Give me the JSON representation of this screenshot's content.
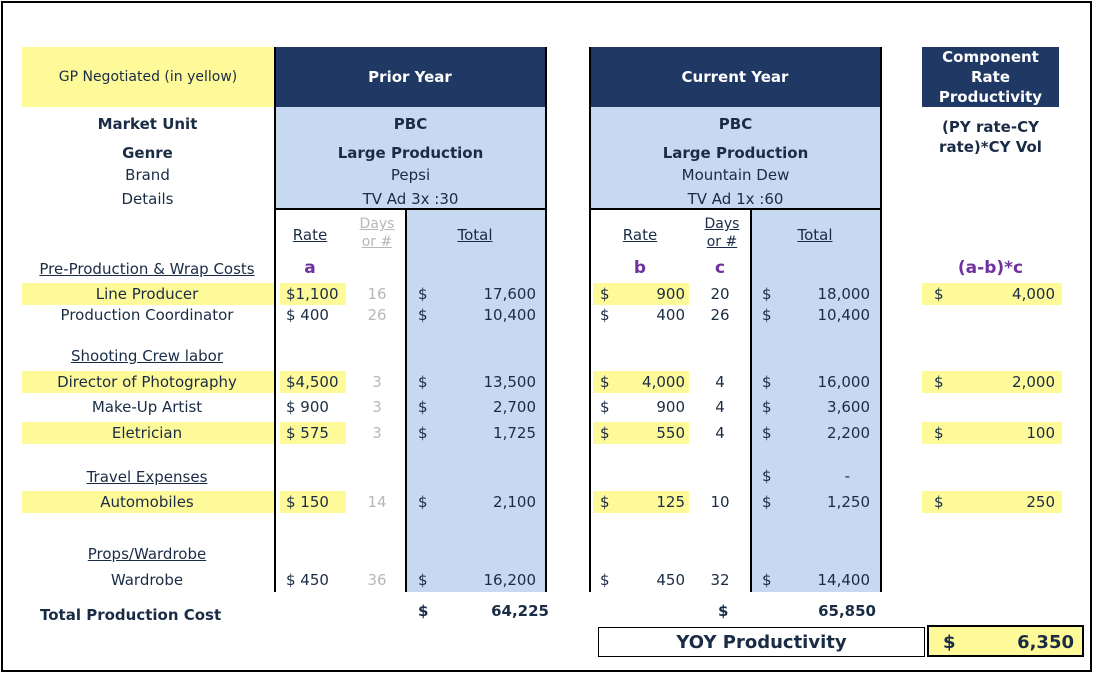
{
  "header": {
    "gp_label": "GP Negotiated (in yellow)",
    "prior_year": "Prior Year",
    "current_year": "Current Year",
    "component_line1": "Component",
    "component_line2": "Rate",
    "component_line3": "Productivity"
  },
  "meta_labels": {
    "market_unit": "Market Unit",
    "genre": "Genre",
    "brand": "Brand",
    "details": "Details"
  },
  "prior": {
    "market_unit": "PBC",
    "genre": "Large Production",
    "brand": "Pepsi",
    "details": "TV Ad 3x :30"
  },
  "current": {
    "market_unit": "PBC",
    "genre": "Large Production",
    "brand": "Mountain Dew",
    "details": "TV Ad 1x :60"
  },
  "formula": {
    "line1": "(PY rate-CY",
    "line2": "rate)*CY Vol"
  },
  "columns": {
    "rate": "Rate",
    "days1": "Days",
    "days2": "or #",
    "total": "Total"
  },
  "letters": {
    "a": "a",
    "b": "b",
    "c": "c",
    "formula": "(a-b)*c"
  },
  "sections": {
    "pre": "Pre-Production & Wrap Costs",
    "crew": "Shooting Crew labor",
    "travel": "Travel Expenses",
    "props": "Props/Wardrobe"
  },
  "rows": [
    {
      "label": "Line Producer",
      "py_rate": "$1,100",
      "py_days": "16",
      "py_total": "17,600",
      "cy_rate": "900",
      "cy_days": "20",
      "cy_total": "18,000",
      "prod": "4,000"
    },
    {
      "label": "Production Coordinator",
      "py_rate": "$  400",
      "py_days": "26",
      "py_total": "10,400",
      "cy_rate": "400",
      "cy_days": "26",
      "cy_total": "10,400",
      "prod": ""
    },
    {
      "label": "Director of Photography",
      "py_rate": "$4,500",
      "py_days": "3",
      "py_total": "13,500",
      "cy_rate": "4,000",
      "cy_days": "4",
      "cy_total": "16,000",
      "prod": "2,000"
    },
    {
      "label": "Make-Up Artist",
      "py_rate": "$  900",
      "py_days": "3",
      "py_total": "2,700",
      "cy_rate": "900",
      "cy_days": "4",
      "cy_total": "3,600",
      "prod": ""
    },
    {
      "label": "Eletrician",
      "py_rate": "$  575",
      "py_days": "3",
      "py_total": "1,725",
      "cy_rate": "550",
      "cy_days": "4",
      "cy_total": "2,200",
      "prod": "100"
    },
    {
      "label": "",
      "py_rate": "",
      "py_days": "",
      "py_total": "",
      "cy_rate": "",
      "cy_days": "",
      "cy_total": "-",
      "prod": ""
    },
    {
      "label": "Automobiles",
      "py_rate": "$  150",
      "py_days": "14",
      "py_total": "2,100",
      "cy_rate": "125",
      "cy_days": "10",
      "cy_total": "1,250",
      "prod": "250"
    },
    {
      "label": "Wardrobe",
      "py_rate": "$  450",
      "py_days": "36",
      "py_total": "16,200",
      "cy_rate": "450",
      "cy_days": "32",
      "cy_total": "14,400",
      "prod": ""
    }
  ],
  "dollar": "$",
  "totals": {
    "label": "Total Production Cost",
    "py": "64,225",
    "cy": "65,850"
  },
  "yoy": {
    "label": "YOY Productivity",
    "dollar": "$",
    "value": "6,350"
  }
}
